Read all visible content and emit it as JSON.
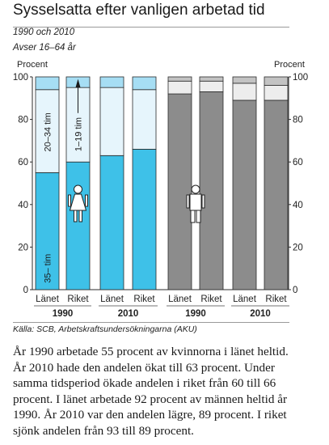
{
  "header": {
    "title": "Sysselsatta efter vanligen arbetad tid",
    "subtitle": "1990 och 2010",
    "note": "Avser 16–64 år"
  },
  "chart_data": {
    "type": "bar",
    "stacked": true,
    "ylabel_left": "Procent",
    "ylabel_right": "Procent",
    "ylim": [
      0,
      100
    ],
    "yticks": [
      0,
      20,
      40,
      60,
      80,
      100
    ],
    "grid": false,
    "groups": [
      {
        "name": "Kvinnor",
        "icon": "woman-icon",
        "bars": [
          {
            "label": "Länet",
            "year": "1990",
            "full": 55,
            "mid": 39,
            "low": 6
          },
          {
            "label": "Riket",
            "year": "1990",
            "full": 60,
            "mid": 35,
            "low": 5
          },
          {
            "label": "Länet",
            "year": "2010",
            "full": 63,
            "mid": 32,
            "low": 5
          },
          {
            "label": "Riket",
            "year": "2010",
            "full": 66,
            "mid": 28,
            "low": 6
          }
        ]
      },
      {
        "name": "Män",
        "icon": "man-icon",
        "bars": [
          {
            "label": "Länet",
            "year": "1990",
            "full": 92,
            "mid": 6,
            "low": 2
          },
          {
            "label": "Riket",
            "year": "1990",
            "full": 93,
            "mid": 5,
            "low": 2
          },
          {
            "label": "Länet",
            "year": "2010",
            "full": 89,
            "mid": 8,
            "low": 3
          },
          {
            "label": "Riket",
            "year": "2010",
            "full": 89,
            "mid": 7,
            "low": 4
          }
        ]
      }
    ],
    "years": [
      "1990",
      "2010",
      "1990",
      "2010"
    ],
    "annotations": {
      "full": "35– tim",
      "mid": "20–34 tim",
      "low": "1–19 tim"
    },
    "colors": {
      "women_full": "#3ec1e8",
      "women_mid": "#e6f5fc",
      "women_low": "#a6def4",
      "men_full": "#8c8c8c",
      "men_mid": "#ededed",
      "men_low": "#c3c3c3"
    }
  },
  "source": "Källa: SCB, Arbetskraftsundersökningarna (AKU)",
  "body": "År 1990 arbetade 55 procent av kvinnorna i länet heltid. År 2010 hade den andelen ökat till 63 procent. Under samma tidsperiod ökade andelen i riket från 60 till 66 procent. I länet arbetade 92 procent av männen heltid år 1990. År 2010 var den andelen lägre, 89 procent. I riket sjönk andelen från 93 till 89 procent."
}
